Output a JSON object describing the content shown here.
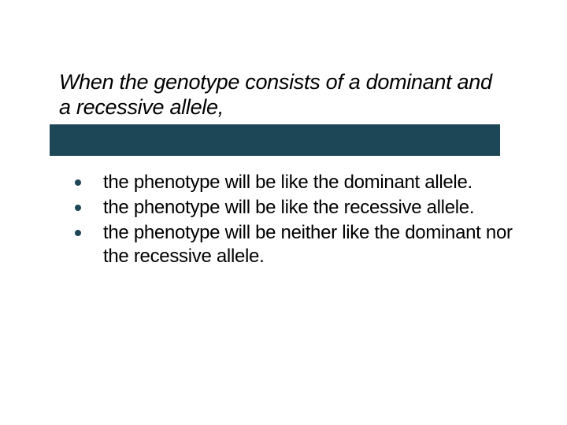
{
  "slide": {
    "title": "When the genotype consists of a dominant and a recessive allele,",
    "bullets": [
      "the phenotype will be like the dominant allele.",
      "the phenotype will be like the recessive allele.",
      "the phenotype will be neither like the dominant nor the recessive allele."
    ]
  },
  "style": {
    "background_color": "#ffffff",
    "title_color": "#000000",
    "title_fontsize": 27,
    "title_style": "italic",
    "bar_color": "#1d4757",
    "bullet_marker_color": "#1d4757",
    "bullet_text_color": "#000000",
    "bullet_fontsize": 24
  }
}
